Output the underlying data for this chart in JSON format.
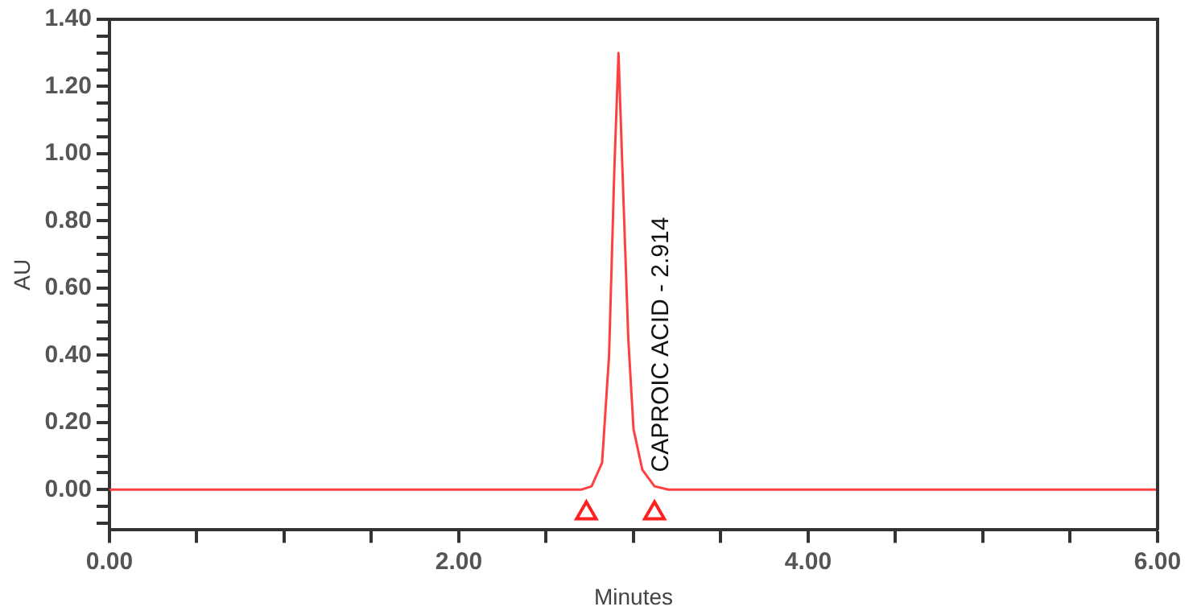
{
  "chart_data": {
    "type": "line",
    "xlabel": "Minutes",
    "ylabel": "AU",
    "xlim": [
      0,
      6
    ],
    "ylim": [
      -0.12,
      1.4
    ],
    "xticks": [
      {
        "value": 0,
        "label": "0.00"
      },
      {
        "value": 0.5,
        "label": null
      },
      {
        "value": 1,
        "label": null
      },
      {
        "value": 1.5,
        "label": null
      },
      {
        "value": 2,
        "label": "2.00"
      },
      {
        "value": 2.5,
        "label": null
      },
      {
        "value": 3,
        "label": null
      },
      {
        "value": 3.5,
        "label": null
      },
      {
        "value": 4,
        "label": "4.00"
      },
      {
        "value": 4.5,
        "label": null
      },
      {
        "value": 5,
        "label": null
      },
      {
        "value": 5.5,
        "label": null
      },
      {
        "value": 6,
        "label": "6.00"
      }
    ],
    "yticks": [
      {
        "value": -0.1,
        "label": null
      },
      {
        "value": -0.05,
        "label": null
      },
      {
        "value": 0,
        "label": "0.00"
      },
      {
        "value": 0.05,
        "label": null
      },
      {
        "value": 0.1,
        "label": null
      },
      {
        "value": 0.15,
        "label": null
      },
      {
        "value": 0.2,
        "label": "0.20"
      },
      {
        "value": 0.25,
        "label": null
      },
      {
        "value": 0.3,
        "label": null
      },
      {
        "value": 0.35,
        "label": null
      },
      {
        "value": 0.4,
        "label": "0.40"
      },
      {
        "value": 0.45,
        "label": null
      },
      {
        "value": 0.5,
        "label": null
      },
      {
        "value": 0.55,
        "label": null
      },
      {
        "value": 0.6,
        "label": "0.60"
      },
      {
        "value": 0.65,
        "label": null
      },
      {
        "value": 0.7,
        "label": null
      },
      {
        "value": 0.75,
        "label": null
      },
      {
        "value": 0.8,
        "label": "0.80"
      },
      {
        "value": 0.85,
        "label": null
      },
      {
        "value": 0.9,
        "label": null
      },
      {
        "value": 0.95,
        "label": null
      },
      {
        "value": 1,
        "label": "1.00"
      },
      {
        "value": 1.05,
        "label": null
      },
      {
        "value": 1.1,
        "label": null
      },
      {
        "value": 1.15,
        "label": null
      },
      {
        "value": 1.2,
        "label": "1.20"
      },
      {
        "value": 1.25,
        "label": null
      },
      {
        "value": 1.3,
        "label": null
      },
      {
        "value": 1.35,
        "label": null
      },
      {
        "value": 1.4,
        "label": "1.40"
      }
    ],
    "grid": false,
    "legend": false,
    "series": [
      {
        "color": "#ff4040",
        "marker": "none",
        "x": [
          0,
          2.7,
          2.76,
          2.82,
          2.86,
          2.89,
          2.914,
          2.94,
          2.97,
          3.0,
          3.05,
          3.12,
          3.2,
          6
        ],
        "values": [
          0,
          0,
          0.01,
          0.08,
          0.4,
          0.95,
          1.3,
          0.9,
          0.45,
          0.18,
          0.06,
          0.01,
          0,
          0
        ]
      },
      {
        "type": "scatter",
        "color": "#ff2020",
        "marker": "triangle",
        "x": [
          2.73,
          3.12
        ],
        "values": [
          -0.07,
          -0.07
        ]
      }
    ],
    "annotations": [
      "CAPROIC ACID - 2.914"
    ]
  }
}
